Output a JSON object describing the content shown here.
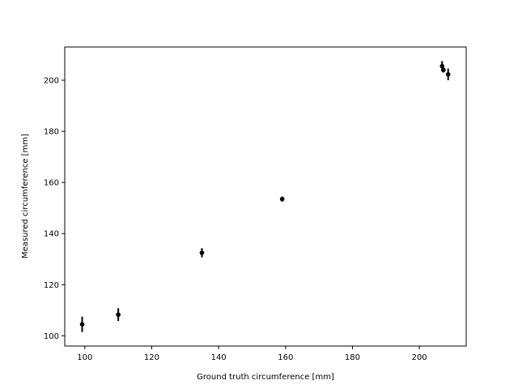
{
  "chart_data": {
    "type": "scatter",
    "title": "",
    "xlabel": "Ground truth circumference [mm]",
    "ylabel": "Measured circumference [mm]",
    "xlim": [
      94,
      214
    ],
    "ylim": [
      96,
      213
    ],
    "xticks": [
      100,
      120,
      140,
      160,
      180,
      200
    ],
    "yticks": [
      100,
      120,
      140,
      160,
      180,
      200
    ],
    "grid": false,
    "marker_color": "#000000",
    "points": [
      {
        "x": 99.2,
        "y": 104.5,
        "err": 3.0
      },
      {
        "x": 110.0,
        "y": 108.3,
        "err": 2.5
      },
      {
        "x": 135.0,
        "y": 132.5,
        "err": 1.8
      },
      {
        "x": 159.0,
        "y": 153.5,
        "err": 1.0
      },
      {
        "x": 206.8,
        "y": 205.5,
        "err": 2.0
      },
      {
        "x": 207.2,
        "y": 204.0,
        "err": 1.0
      },
      {
        "x": 208.6,
        "y": 202.3,
        "err": 2.3
      }
    ]
  }
}
